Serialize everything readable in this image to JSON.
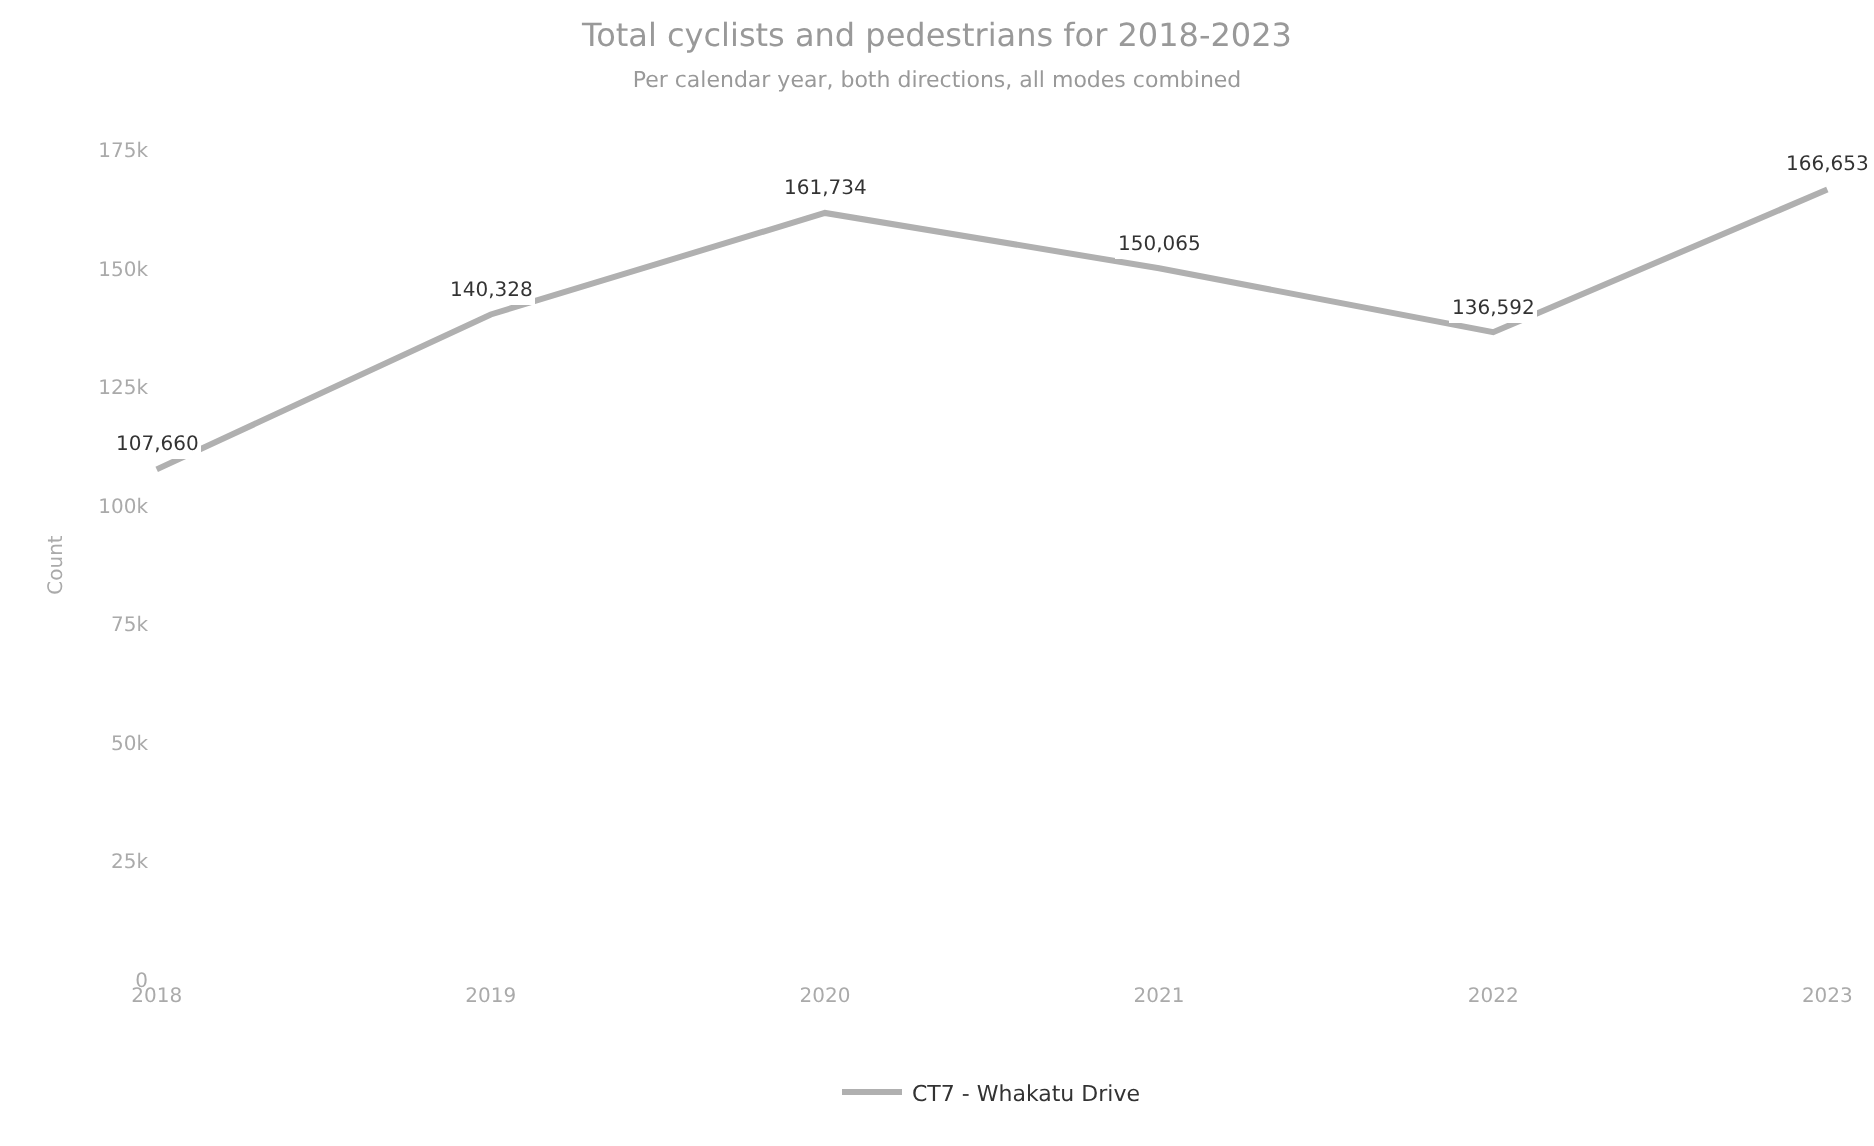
{
  "chart_data": {
    "type": "line",
    "title": "Total cyclists and pedestrians for 2018-2023",
    "subtitle": "Per calendar year, both directions, all modes combined",
    "ylabel": "Count",
    "categories": [
      "2018",
      "2019",
      "2020",
      "2021",
      "2022",
      "2023"
    ],
    "series": [
      {
        "name": "CT7 - Whakatu Drive",
        "color": "#b0b0b0",
        "values": [
          107660,
          140328,
          161734,
          150065,
          136592,
          166653
        ],
        "value_labels": [
          "107,660",
          "140,328",
          "161,734",
          "150,065",
          "136,592",
          "166,653"
        ]
      }
    ],
    "ylim": [
      0,
      175000
    ],
    "yticks": [
      0,
      {
        "value": 25000,
        "label": "25k"
      },
      {
        "value": 50000,
        "label": "50k"
      },
      {
        "value": 75000,
        "label": "75k"
      },
      {
        "value": 100000,
        "label": "100k"
      },
      {
        "value": 125000,
        "label": "125k"
      },
      {
        "value": 150000,
        "label": "150k"
      },
      {
        "value": 175000,
        "label": "175k"
      }
    ],
    "legend": "bottom",
    "marker": "none",
    "line_style": "solid"
  }
}
